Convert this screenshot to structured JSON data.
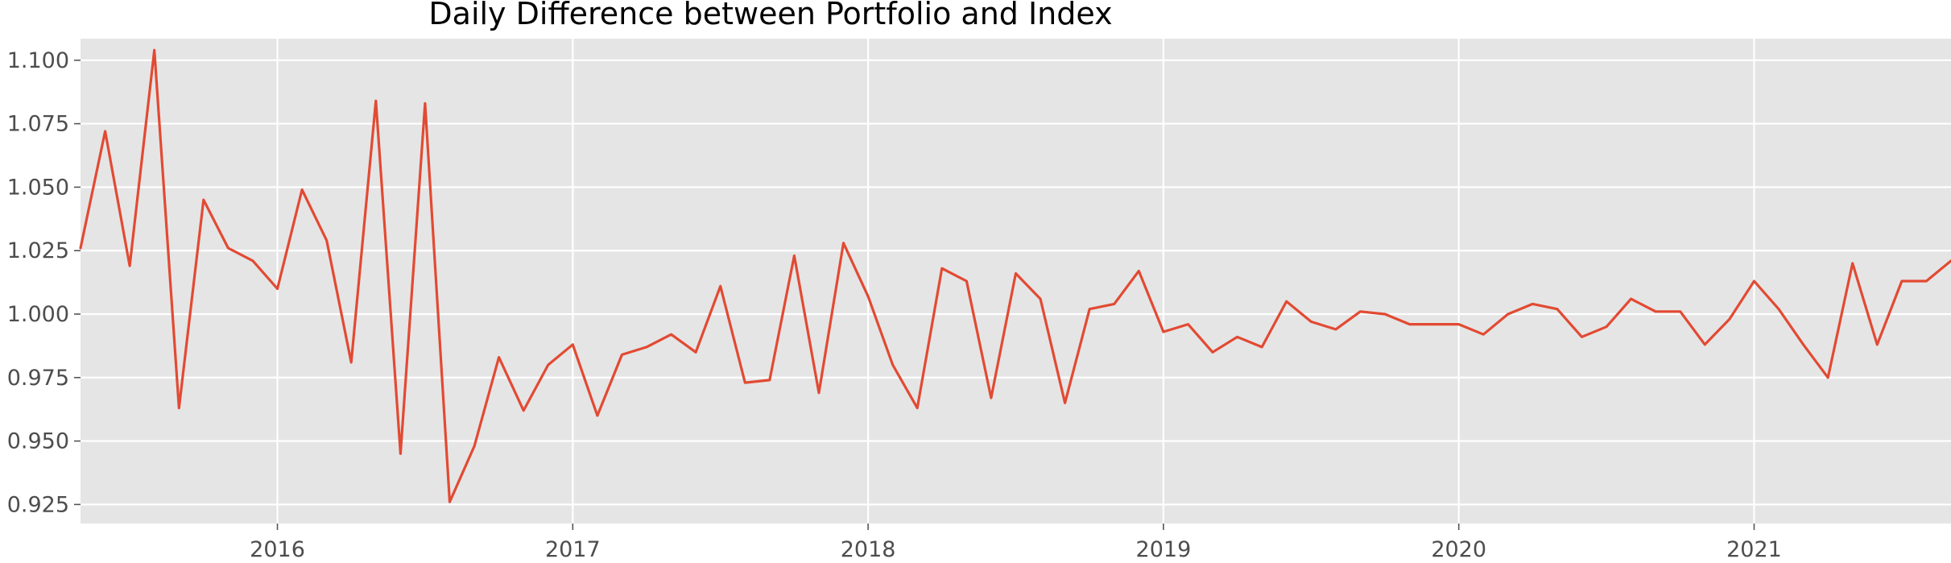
{
  "chart_data": {
    "type": "line",
    "title": "Daily Difference between Portfolio and Index",
    "xlabel": "",
    "ylabel": "",
    "x_start": "2015-05",
    "x_end": "2021-09",
    "x_ticks": [
      {
        "label": "2016",
        "date": "2016-01"
      },
      {
        "label": "2017",
        "date": "2017-01"
      },
      {
        "label": "2018",
        "date": "2018-01"
      },
      {
        "label": "2019",
        "date": "2019-01"
      },
      {
        "label": "2020",
        "date": "2020-01"
      },
      {
        "label": "2021",
        "date": "2021-01"
      }
    ],
    "y_ticks": [
      "0.925",
      "0.950",
      "0.975",
      "1.000",
      "1.025",
      "1.050",
      "1.075",
      "1.100"
    ],
    "ylim": [
      0.9175,
      1.1085
    ],
    "grid": true,
    "line_color": "#e24a33",
    "background_color": "#e5e5e5",
    "grid_color": "#ffffff",
    "series": [
      {
        "x": [
          "2015-05",
          "2015-06",
          "2015-07",
          "2015-08",
          "2015-09",
          "2015-10",
          "2015-11",
          "2015-12",
          "2016-01",
          "2016-02",
          "2016-03",
          "2016-04",
          "2016-05",
          "2016-06",
          "2016-07",
          "2016-08",
          "2016-09",
          "2016-10",
          "2016-11",
          "2016-12",
          "2017-01",
          "2017-02",
          "2017-03",
          "2017-04",
          "2017-05",
          "2017-06",
          "2017-07",
          "2017-08",
          "2017-09",
          "2017-10",
          "2017-11",
          "2017-12",
          "2018-01",
          "2018-02",
          "2018-03",
          "2018-04",
          "2018-05",
          "2018-06",
          "2018-07",
          "2018-08",
          "2018-09",
          "2018-10",
          "2018-11",
          "2018-12",
          "2019-01",
          "2019-02",
          "2019-03",
          "2019-04",
          "2019-05",
          "2019-06",
          "2019-07",
          "2019-08",
          "2019-09",
          "2019-10",
          "2019-11",
          "2019-12",
          "2020-01",
          "2020-02",
          "2020-03",
          "2020-04",
          "2020-05",
          "2020-06",
          "2020-07",
          "2020-08",
          "2020-09",
          "2020-10",
          "2020-11",
          "2020-12",
          "2021-01",
          "2021-02",
          "2021-03",
          "2021-04",
          "2021-05",
          "2021-06",
          "2021-07",
          "2021-08",
          "2021-09"
        ],
        "values": [
          1.026,
          1.072,
          1.019,
          1.104,
          0.963,
          1.045,
          1.026,
          1.021,
          1.01,
          1.049,
          1.029,
          0.981,
          1.084,
          0.945,
          1.083,
          0.926,
          0.948,
          0.983,
          0.962,
          0.98,
          0.988,
          0.96,
          0.984,
          0.987,
          0.992,
          0.985,
          1.011,
          0.973,
          0.974,
          1.023,
          0.969,
          1.028,
          1.007,
          0.98,
          0.963,
          1.018,
          1.013,
          0.967,
          1.016,
          1.006,
          0.965,
          1.002,
          1.004,
          1.017,
          0.993,
          0.996,
          0.985,
          0.991,
          0.987,
          1.005,
          0.997,
          0.994,
          1.001,
          1.0,
          0.996,
          0.996,
          0.996,
          0.992,
          1.0,
          1.004,
          1.002,
          0.991,
          0.995,
          1.006,
          1.001,
          1.001,
          0.988,
          0.998,
          1.013,
          1.002,
          0.988,
          0.975,
          1.02,
          0.988,
          1.013,
          1.013,
          1.021
        ]
      }
    ]
  }
}
